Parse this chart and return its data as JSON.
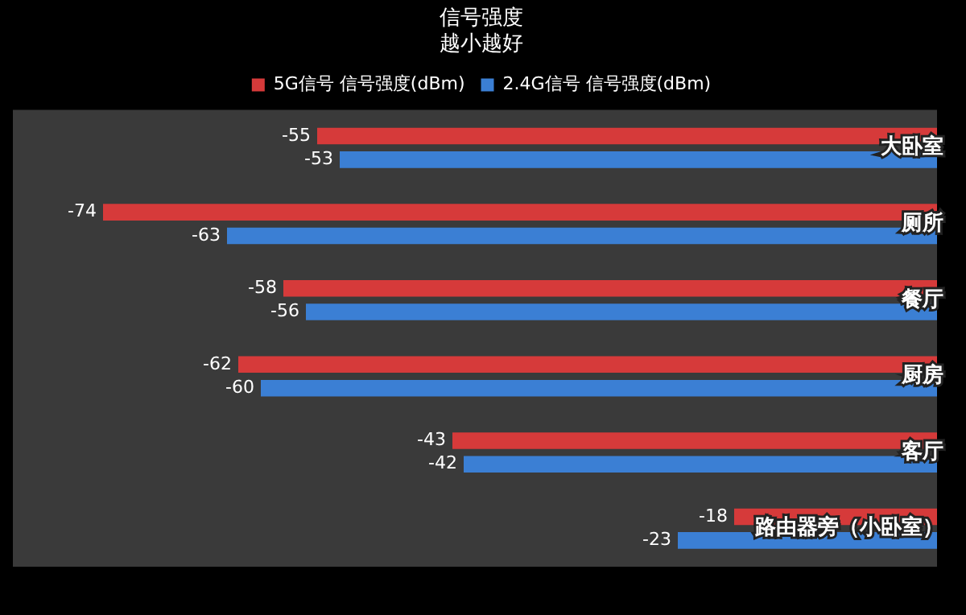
{
  "chart_data": {
    "type": "bar",
    "orientation": "horizontal",
    "title": "信号强度",
    "subtitle": "越小越好",
    "categories": [
      "大卧室",
      "厕所",
      "餐厅",
      "厨房",
      "客厅",
      "路由器旁（小卧室）"
    ],
    "series": [
      {
        "name": "5G信号 信号强度(dBm)",
        "color": "#d63a3a",
        "values": [
          -55,
          -74,
          -58,
          -62,
          -43,
          -18
        ]
      },
      {
        "name": "2.4G信号 信号强度(dBm)",
        "color": "#3b7fd4",
        "values": [
          -53,
          -63,
          -56,
          -60,
          -42,
          -23
        ]
      }
    ],
    "xlim": [
      -82,
      0
    ],
    "data_labels": true,
    "legend": "top",
    "tick_labels": "y"
  }
}
